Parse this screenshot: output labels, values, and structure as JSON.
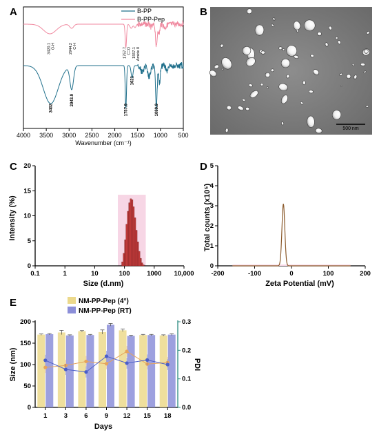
{
  "panels": {
    "A": {
      "label": "A"
    },
    "B": {
      "label": "B",
      "scale_bar": "500 nm"
    },
    "C": {
      "label": "C"
    },
    "D": {
      "label": "D"
    },
    "E": {
      "label": "E"
    }
  },
  "colors": {
    "b_pp": "#1f6f8b",
    "b_pp_pep": "#f08aa0",
    "dls_bar": "#c23b3b",
    "dls_bg": "#f4c8dc",
    "zeta_line": "#8b5a2b",
    "zeta_fill": "#f7d6e6",
    "bar_4c": "#ecd98c",
    "bar_rt": "#8c8fd9",
    "pdi_4c": "#e6a45c",
    "pdi_rt": "#4a5ec9",
    "axis_right": "#2a8a80"
  },
  "chart_data": [
    {
      "panel": "A",
      "type": "line",
      "xlabel": "Wavenumber (cm⁻¹)",
      "ylabel": "",
      "xlim": [
        4000,
        500
      ],
      "x_ticks": [
        4000,
        3500,
        3000,
        2500,
        2000,
        1500,
        1000,
        500
      ],
      "legend_position": "top-right",
      "series": [
        {
          "name": "B-PP",
          "color": "#1f6f8b"
        },
        {
          "name": "B-PP-Pep",
          "color": "#f08aa0"
        }
      ],
      "annotations_pep": [
        {
          "x": 3420,
          "label": "3420.1",
          "label2": "O-H"
        },
        {
          "x": 2944,
          "label": "2944.2",
          "label2": "C-H"
        },
        {
          "x": 1757,
          "label": "1757.7",
          "label2": "C=O"
        },
        {
          "x": 1557,
          "label": "1557.1",
          "label2": "Amide II"
        }
      ],
      "annotations_pp": [
        {
          "x": 3402,
          "label": "3402"
        },
        {
          "x": 2943,
          "label": "2943.9"
        },
        {
          "x": 1757,
          "label": "1757.9"
        },
        {
          "x": 1621,
          "label": "1621"
        },
        {
          "x": 1089,
          "label": "1089.9"
        }
      ]
    },
    {
      "panel": "C",
      "type": "bar",
      "xlabel": "Size (d.nm)",
      "ylabel": "Intensity (%)",
      "x_scale": "log",
      "xlim": [
        0.1,
        10000
      ],
      "ylim": [
        0,
        20
      ],
      "x_tick_labels": [
        "0.1",
        "1",
        "10",
        "100",
        "1000",
        "10,000"
      ],
      "y_ticks": [
        0,
        5,
        10,
        15,
        20
      ],
      "size_bins": [
        85,
        95,
        106,
        118,
        132,
        147,
        164,
        183,
        204,
        228,
        254,
        284,
        316,
        353,
        394,
        440
      ],
      "intensity": [
        0.8,
        2.5,
        5.2,
        8.3,
        10.9,
        12.6,
        13.4,
        13.2,
        11.8,
        9.6,
        7.1,
        4.8,
        2.9,
        1.5,
        0.6,
        0.2
      ]
    },
    {
      "panel": "D",
      "type": "line",
      "xlabel": "Zeta Potential (mV)",
      "ylabel": "Total counts (x10⁵)",
      "xlim": [
        -200,
        200
      ],
      "ylim": [
        0,
        5
      ],
      "x_ticks": [
        -200,
        -100,
        0,
        100,
        200
      ],
      "y_ticks": [
        0,
        1,
        2,
        3,
        4,
        5
      ],
      "peak_center": -22,
      "peak_height": 3.1,
      "peak_sigma": 5.5
    },
    {
      "panel": "E",
      "type": "bar",
      "xlabel": "Days",
      "ylabel": "Size (nm)",
      "ylabel_right": "PDI",
      "categories": [
        "1",
        "3",
        "6",
        "9",
        "12",
        "15",
        "18"
      ],
      "ylim": [
        0,
        200
      ],
      "y_ticks": [
        0,
        50,
        100,
        150,
        200
      ],
      "ylim_right": [
        0,
        0.3
      ],
      "y_ticks_right": [
        "0.0",
        "0.1",
        "0.2",
        "0.3"
      ],
      "legend_position": "top",
      "series": [
        {
          "name": "NM-PP-Pep (4°)",
          "values": [
            170,
            175,
            178,
            176,
            180,
            169,
            168
          ],
          "errors": [
            1.5,
            5,
            1.5,
            5,
            3,
            1.5,
            1.5
          ]
        },
        {
          "name": "NM-PP-Pep (RT)",
          "values": [
            171,
            168,
            169,
            193,
            167,
            169,
            170
          ],
          "errors": [
            1.5,
            1.5,
            1.5,
            3,
            1.5,
            1.5,
            2
          ]
        }
      ],
      "pdi_series": [
        {
          "values": [
            0.14,
            0.147,
            0.161,
            0.153,
            0.196,
            0.152,
            0.157
          ]
        },
        {
          "values": [
            0.165,
            0.133,
            0.124,
            0.179,
            0.155,
            0.166,
            0.15
          ]
        }
      ]
    }
  ]
}
